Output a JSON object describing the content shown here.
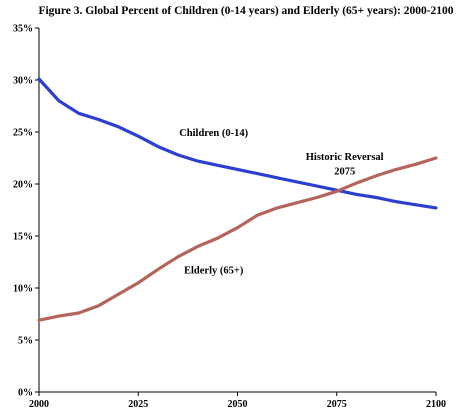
{
  "chart_data": {
    "type": "line",
    "title": "Figure 3. Global Percent of Children (0-14 years) and Elderly (65+ years): 2000-2100",
    "xlabel": "",
    "ylabel": "",
    "xlim": [
      2000,
      2100
    ],
    "ylim": [
      0,
      35
    ],
    "x_ticks": [
      2000,
      2025,
      2050,
      2075,
      2100
    ],
    "x_tick_labels": [
      "2000",
      "2025",
      "2050",
      "2075",
      "2100"
    ],
    "y_ticks": [
      0,
      5,
      10,
      15,
      20,
      25,
      30,
      35
    ],
    "y_tick_labels": [
      "0%",
      "5%",
      "10%",
      "15%",
      "20%",
      "25%",
      "30%",
      "35%"
    ],
    "grid": false,
    "legend": "none",
    "series": [
      {
        "name": "Children (0-14)",
        "color": "#2b3fd0",
        "x": [
          2000,
          2005,
          2010,
          2015,
          2020,
          2025,
          2030,
          2035,
          2040,
          2045,
          2050,
          2055,
          2060,
          2065,
          2070,
          2075,
          2080,
          2085,
          2090,
          2095,
          2100
        ],
        "values": [
          30.1,
          28.0,
          26.8,
          26.2,
          25.5,
          24.6,
          23.6,
          22.8,
          22.2,
          21.8,
          21.4,
          21.0,
          20.6,
          20.2,
          19.8,
          19.4,
          19.0,
          18.7,
          18.3,
          18.0,
          17.7
        ]
      },
      {
        "name": "Elderly (65+)",
        "color": "#b5645a",
        "x": [
          2000,
          2005,
          2010,
          2015,
          2020,
          2025,
          2030,
          2035,
          2040,
          2045,
          2050,
          2055,
          2060,
          2065,
          2070,
          2075,
          2080,
          2085,
          2090,
          2095,
          2100
        ],
        "values": [
          6.9,
          7.3,
          7.6,
          8.3,
          9.4,
          10.5,
          11.8,
          13.0,
          14.0,
          14.8,
          15.8,
          17.0,
          17.7,
          18.2,
          18.7,
          19.3,
          20.1,
          20.8,
          21.4,
          21.9,
          22.5
        ]
      }
    ],
    "annotations": [
      {
        "text": "Children (0-14)",
        "series": "Children (0-14)"
      },
      {
        "text": "Elderly (65+)",
        "series": "Elderly (65+)"
      },
      {
        "text": "Historic Reversal",
        "line2": "2075"
      }
    ]
  }
}
